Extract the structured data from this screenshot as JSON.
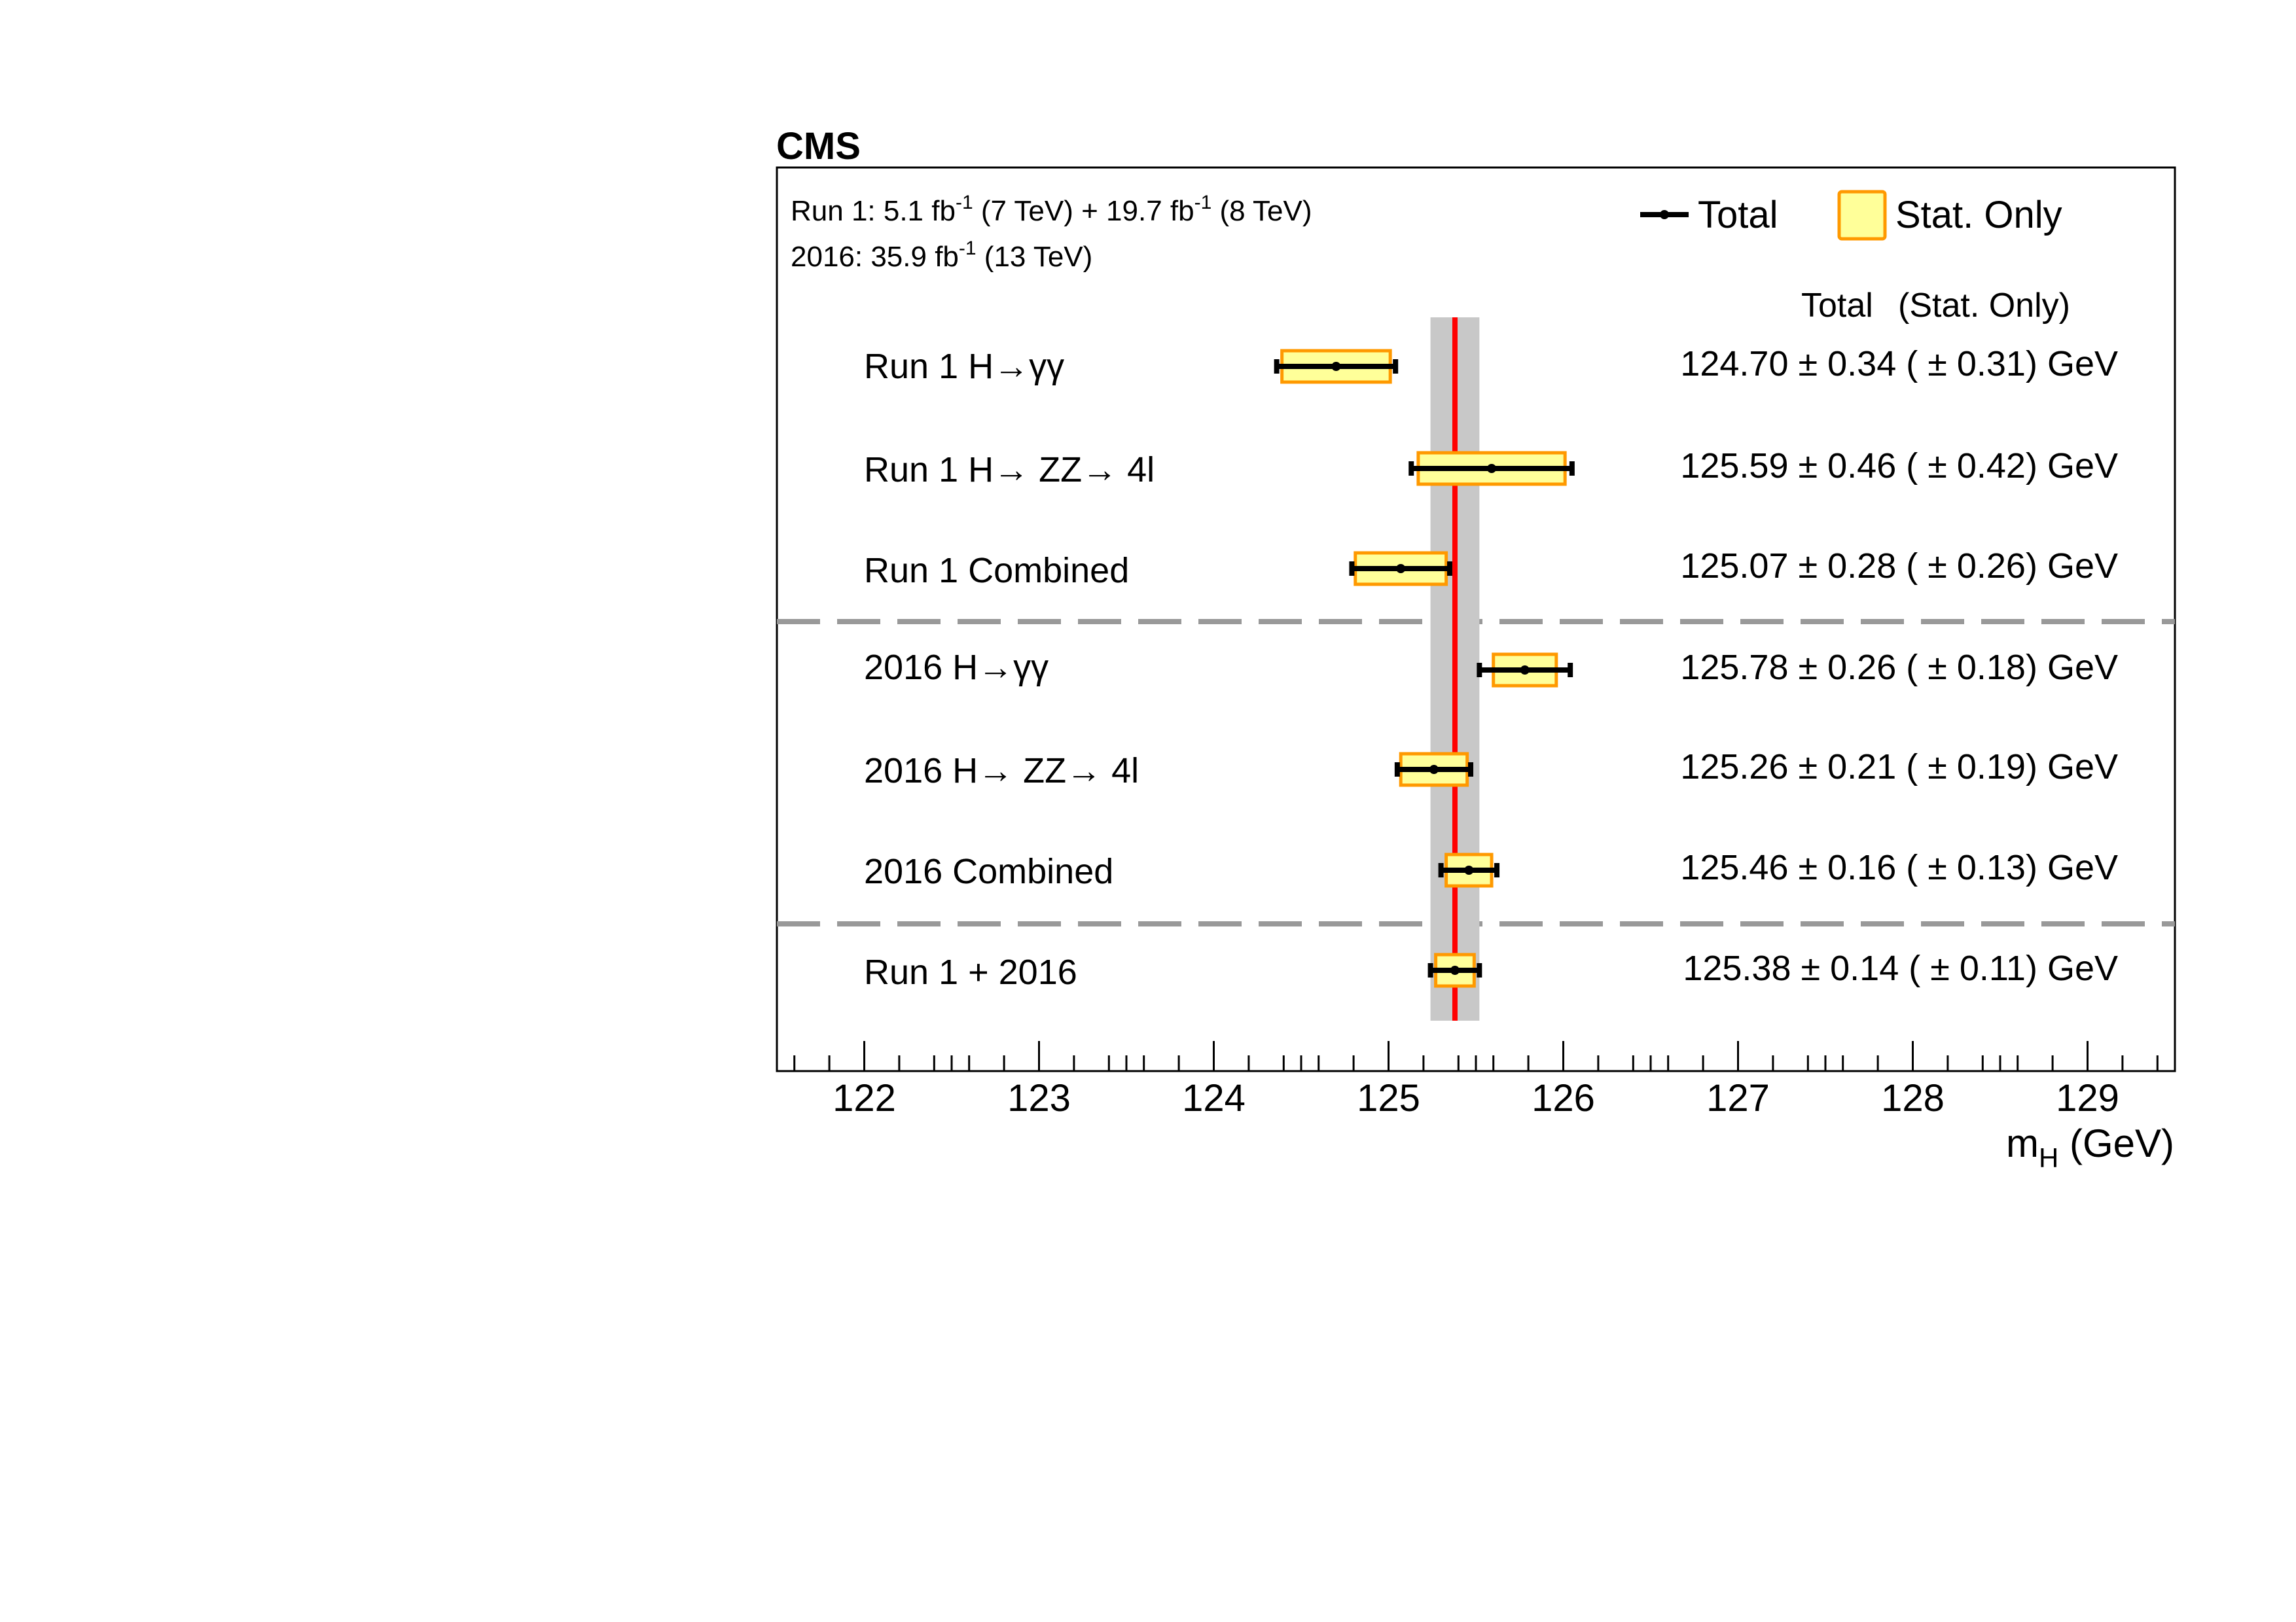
{
  "experiment_label": "CMS",
  "lumi": {
    "run1": {
      "prefix": "Run 1: 5.1 fb",
      "exp1": "-1",
      "mid": " (7 TeV) + 19.7 fb",
      "exp2": "-1",
      "suffix": " (8 TeV)"
    },
    "y2016": {
      "prefix": "2016: 35.9 fb",
      "exp": "-1",
      "suffix": " (13 TeV)"
    }
  },
  "legend": {
    "total": "Total",
    "stat_only": "Stat. Only"
  },
  "column_header": {
    "total": "Total",
    "stat": "(Stat. Only)"
  },
  "colors": {
    "combined_line": "#ff0000",
    "combined_band": "#c8c8c8",
    "stat_box_fill": "#ffff99",
    "stat_box_edge": "#ff9900",
    "separator": "#999999"
  },
  "chart_data": {
    "type": "forest",
    "xlabel": "m_H (GeV)",
    "xlim": [
      121.5,
      129.5
    ],
    "xticks": [
      "122",
      "123",
      "124",
      "125",
      "126",
      "127",
      "128",
      "129"
    ],
    "combined": {
      "value": 125.38,
      "total_unc": 0.14
    },
    "rows": [
      {
        "label": "Run 1 H→γγ",
        "value": 124.7,
        "total": 0.34,
        "stat": 0.31,
        "text": "124.70 ± 0.34 ( ± 0.31) GeV"
      },
      {
        "label": "Run 1 H→ ZZ→ 4l",
        "value": 125.59,
        "total": 0.46,
        "stat": 0.42,
        "text": "125.59 ± 0.46 ( ± 0.42) GeV"
      },
      {
        "label": "Run 1 Combined",
        "value": 125.07,
        "total": 0.28,
        "stat": 0.26,
        "text": "125.07 ± 0.28 ( ± 0.26) GeV"
      },
      {
        "label": "2016 H→γγ",
        "value": 125.78,
        "total": 0.26,
        "stat": 0.18,
        "text": "125.78 ± 0.26 ( ± 0.18) GeV"
      },
      {
        "label": "2016 H→ ZZ→ 4l",
        "value": 125.26,
        "total": 0.21,
        "stat": 0.19,
        "text": "125.26 ± 0.21 ( ± 0.19) GeV"
      },
      {
        "label": "2016 Combined",
        "value": 125.46,
        "total": 0.16,
        "stat": 0.13,
        "text": "125.46 ± 0.16 ( ± 0.13) GeV"
      },
      {
        "label": "Run 1 + 2016",
        "value": 125.38,
        "total": 0.14,
        "stat": 0.11,
        "text": "125.38 ± 0.14 ( ± 0.11) GeV"
      }
    ]
  }
}
